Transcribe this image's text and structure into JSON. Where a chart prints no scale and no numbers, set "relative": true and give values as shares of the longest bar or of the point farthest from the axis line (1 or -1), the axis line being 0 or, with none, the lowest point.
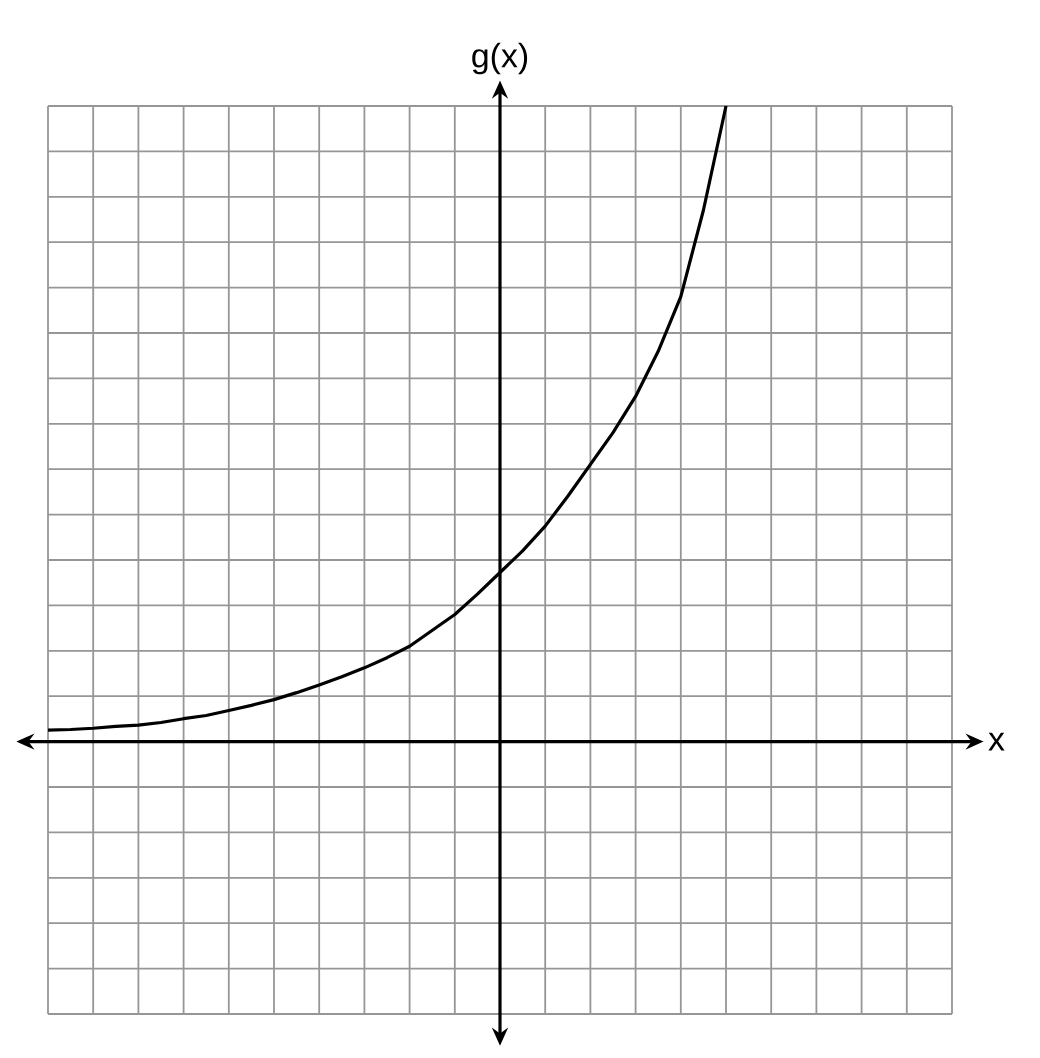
{
  "chart_data": {
    "type": "line",
    "annotations": [
      "x"
    ],
    "ylabel": "g(x)",
    "relative": true,
    "grid": true,
    "tick_labels": false,
    "marker": "none",
    "color": "#000000",
    "categories": [
      null,
      null,
      null,
      null,
      null,
      null,
      null,
      null,
      null,
      null,
      null,
      null,
      null,
      null,
      null,
      null,
      null,
      null,
      null,
      null,
      null,
      null,
      null,
      null,
      null,
      null,
      null,
      null,
      null,
      null,
      null
    ],
    "values": [
      0.018,
      0.019,
      0.021,
      0.024,
      0.026,
      0.03,
      0.036,
      0.041,
      0.049,
      0.057,
      0.066,
      0.077,
      0.089,
      0.102,
      0.116,
      0.132,
      0.15,
      0.175,
      0.2,
      0.232,
      0.266,
      0.3,
      0.339,
      0.386,
      0.436,
      0.486,
      0.543,
      0.614,
      0.7,
      0.836,
      1
    ]
  }
}
